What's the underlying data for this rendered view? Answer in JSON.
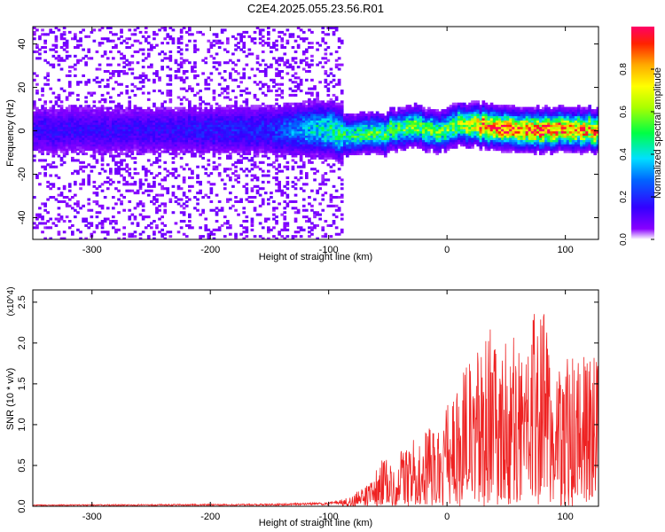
{
  "title": "C2E4.2025.055.23.56.R01",
  "chart_data": [
    {
      "type": "heatmap",
      "xlabel": "Height of straight line (km)",
      "ylabel": "Frequency (Hz)",
      "xlim": [
        -350,
        128
      ],
      "ylim": [
        -50,
        48
      ],
      "xticks": [
        -300,
        -200,
        -100,
        0,
        100
      ],
      "yticks": [
        -40,
        -20,
        0,
        20,
        40
      ],
      "colorbar": {
        "label": "Normalized spectral amplitude",
        "range": [
          0.0,
          1.0
        ],
        "ticks": [
          0.0,
          0.2,
          0.4,
          0.6,
          0.8
        ]
      },
      "ridge_center_hz": [
        [
          -350,
          0
        ],
        [
          -300,
          0
        ],
        [
          -250,
          0
        ],
        [
          -200,
          0
        ],
        [
          -150,
          0
        ],
        [
          -120,
          0
        ],
        [
          -100,
          1
        ],
        [
          -85,
          -3
        ],
        [
          -70,
          -1
        ],
        [
          -55,
          -2
        ],
        [
          -40,
          1
        ],
        [
          -25,
          2
        ],
        [
          -10,
          -1
        ],
        [
          0,
          1
        ],
        [
          10,
          3
        ],
        [
          25,
          2
        ],
        [
          45,
          1
        ],
        [
          65,
          0
        ],
        [
          85,
          0
        ],
        [
          105,
          0
        ],
        [
          128,
          0
        ]
      ],
      "ridge_peak_amplitude": [
        [
          -350,
          0.15
        ],
        [
          -250,
          0.15
        ],
        [
          -150,
          0.2
        ],
        [
          -120,
          0.35
        ],
        [
          -100,
          0.45
        ],
        [
          -60,
          0.5
        ],
        [
          -20,
          0.55
        ],
        [
          0,
          0.55
        ],
        [
          20,
          0.7
        ],
        [
          30,
          0.9
        ],
        [
          60,
          0.85
        ],
        [
          80,
          0.9
        ],
        [
          100,
          0.85
        ],
        [
          128,
          0.8
        ]
      ],
      "grid": false
    },
    {
      "type": "line",
      "xlabel": "Height of straight line (km)",
      "ylabel": "SNR (10 * v/v)",
      "y_multiplier": "(x10^4)",
      "xlim": [
        -350,
        128
      ],
      "ylim": [
        0.0,
        2.65
      ],
      "xticks": [
        -300,
        -200,
        -100,
        0,
        100
      ],
      "yticks": [
        0.0,
        0.5,
        1.0,
        1.5,
        2.0,
        2.5
      ],
      "color": "#ee2222",
      "envelope": [
        [
          -350,
          0.02
        ],
        [
          -150,
          0.03
        ],
        [
          -100,
          0.05
        ],
        [
          -90,
          0.08
        ],
        [
          -80,
          0.12
        ],
        [
          -65,
          0.35
        ],
        [
          -55,
          0.6
        ],
        [
          -40,
          0.7
        ],
        [
          -20,
          0.9
        ],
        [
          -5,
          1.1
        ],
        [
          5,
          1.45
        ],
        [
          15,
          1.75
        ],
        [
          25,
          1.85
        ],
        [
          35,
          2.25
        ],
        [
          45,
          1.9
        ],
        [
          55,
          2.15
        ],
        [
          65,
          1.85
        ],
        [
          75,
          2.45
        ],
        [
          80,
          2.65
        ],
        [
          90,
          1.65
        ],
        [
          100,
          1.95
        ],
        [
          110,
          1.8
        ],
        [
          120,
          1.85
        ],
        [
          128,
          2.05
        ]
      ],
      "grid": false
    }
  ]
}
